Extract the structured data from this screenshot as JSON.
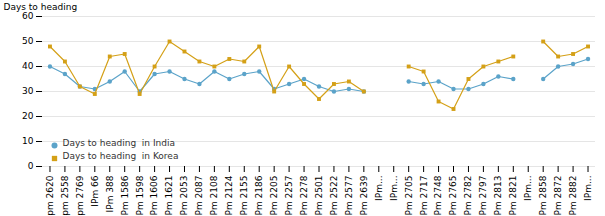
{
  "chart_data": {
    "type": "line",
    "ylabel": "Days to heading",
    "categories": [
      "Ipm 2620",
      "Ipm 2558",
      "Ipm 2769",
      "IPm 66",
      "IPm 388",
      "IPm 1586",
      "IPm 1598",
      "IPm 1606",
      "IPm 1621",
      "IPm 2053",
      "IPm 2087",
      "IPm 2108",
      "IPm 2124",
      "IPm 2155",
      "IPm 2186",
      "IPm 2205",
      "IPm 2257",
      "IPm 2278",
      "IPm 2501",
      "IPm 2522",
      "IPm 2577",
      "IPm 2639",
      "IPm...",
      "IPm...",
      "IPm 2705",
      "IPm 2717",
      "IPm 2748",
      "IPm 2765",
      "IPm 2782",
      "IPm 2797",
      "IPm 2813",
      "IPm 2821",
      "IPm...",
      "IPm 2858",
      "IPm 2872",
      "IPm 2882",
      "IPm..."
    ],
    "series": [
      {
        "name": "Days to heading  in India",
        "color": "#5ba3c9",
        "marker": "circle",
        "values": [
          40,
          37,
          32,
          31,
          34,
          38,
          30,
          37,
          38,
          35,
          33,
          38,
          35,
          37,
          38,
          31,
          33,
          35,
          32,
          30,
          31,
          30,
          null,
          null,
          34,
          33,
          34,
          31,
          31,
          33,
          36,
          35,
          null,
          35,
          40,
          41,
          43
        ]
      },
      {
        "name": "Days to heading  in Korea",
        "color": "#d4a017",
        "marker": "square",
        "values": [
          48,
          42,
          32,
          29,
          44,
          45,
          29,
          40,
          50,
          46,
          42,
          40,
          43,
          42,
          48,
          30,
          40,
          33,
          27,
          33,
          34,
          30,
          null,
          null,
          40,
          38,
          26,
          23,
          35,
          40,
          42,
          44,
          null,
          50,
          44,
          45,
          48
        ]
      }
    ],
    "ylim": [
      0,
      60
    ],
    "yticks": [
      0,
      10,
      20,
      30,
      40,
      50,
      60
    ],
    "grid": true,
    "legend": "lower left"
  }
}
